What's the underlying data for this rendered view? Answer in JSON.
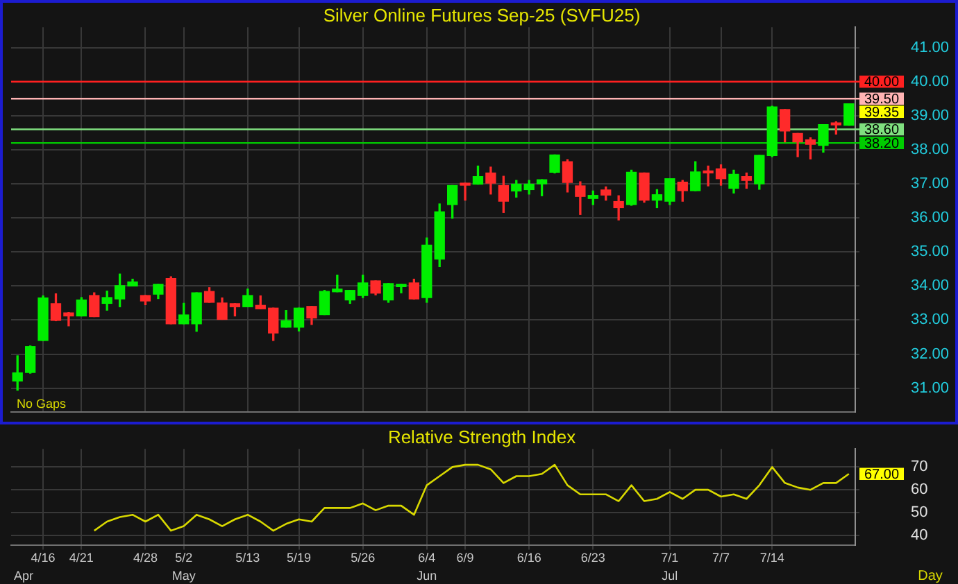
{
  "chart_data": [
    {
      "type": "candlestick",
      "title": "Silver Online Futures Sep-25 (SVFU25)",
      "categories": [
        null,
        null,
        null,
        null,
        null,
        null,
        null,
        null,
        null,
        null,
        null,
        null,
        null,
        null,
        null,
        null,
        null,
        null,
        null,
        null,
        null,
        null,
        null,
        null,
        null,
        null,
        null,
        null,
        null,
        null,
        null,
        null,
        null,
        null,
        null,
        null,
        null,
        null,
        null,
        null,
        null,
        null,
        null,
        null,
        null,
        null,
        null,
        null,
        null,
        null,
        null,
        null,
        null,
        null,
        null,
        null,
        null,
        null,
        null,
        null,
        null,
        null,
        null,
        null,
        null,
        null
      ],
      "ohlc": [
        [
          31.21,
          31.95,
          30.94,
          31.45
        ],
        [
          31.46,
          32.24,
          31.44,
          32.22
        ],
        [
          32.4,
          33.71,
          32.4,
          33.65
        ],
        [
          33.48,
          33.77,
          32.98,
          32.99
        ],
        [
          33.21,
          33.22,
          32.83,
          33.12
        ],
        [
          33.12,
          33.66,
          33.12,
          33.59
        ],
        [
          33.72,
          33.8,
          33.1,
          33.1
        ],
        [
          33.49,
          33.85,
          33.29,
          33.66
        ],
        [
          33.62,
          34.35,
          33.39,
          34.01
        ],
        [
          34.0,
          34.2,
          34.0,
          34.12
        ],
        [
          33.72,
          33.72,
          33.45,
          33.56
        ],
        [
          33.76,
          34.05,
          33.63,
          34.05
        ],
        [
          34.22,
          34.27,
          32.89,
          32.89
        ],
        [
          32.89,
          33.49,
          32.89,
          33.15
        ],
        [
          32.89,
          33.8,
          32.67,
          33.8
        ],
        [
          33.84,
          33.95,
          33.52,
          33.52
        ],
        [
          33.5,
          33.65,
          33.02,
          33.02
        ],
        [
          33.48,
          33.48,
          33.12,
          33.39
        ],
        [
          33.39,
          33.91,
          33.39,
          33.72
        ],
        [
          33.43,
          33.71,
          33.33,
          33.33
        ],
        [
          33.35,
          33.35,
          32.4,
          32.62
        ],
        [
          32.79,
          33.28,
          32.79,
          32.98
        ],
        [
          32.79,
          33.35,
          32.68,
          33.35
        ],
        [
          33.4,
          33.4,
          32.87,
          33.06
        ],
        [
          33.16,
          33.87,
          33.16,
          33.84
        ],
        [
          33.83,
          34.32,
          33.83,
          33.91
        ],
        [
          33.59,
          33.87,
          33.49,
          33.87
        ],
        [
          33.72,
          34.32,
          33.66,
          34.09
        ],
        [
          34.15,
          34.15,
          33.74,
          33.79
        ],
        [
          33.59,
          34.07,
          33.52,
          34.07
        ],
        [
          33.98,
          34.05,
          33.8,
          34.05
        ],
        [
          34.09,
          34.2,
          33.62,
          33.62
        ],
        [
          33.66,
          35.41,
          33.52,
          35.2
        ],
        [
          34.79,
          36.41,
          34.57,
          36.18
        ],
        [
          36.39,
          36.95,
          35.99,
          36.95
        ],
        [
          37.02,
          37.02,
          36.52,
          36.96
        ],
        [
          36.99,
          37.52,
          36.99,
          37.21
        ],
        [
          37.32,
          37.49,
          36.7,
          37.02
        ],
        [
          36.95,
          37.22,
          36.16,
          36.49
        ],
        [
          36.79,
          37.1,
          36.61,
          36.99
        ],
        [
          36.83,
          37.1,
          36.7,
          36.99
        ],
        [
          37.0,
          37.12,
          36.65,
          37.12
        ],
        [
          37.34,
          37.85,
          37.32,
          37.85
        ],
        [
          37.65,
          37.71,
          36.76,
          37.04
        ],
        [
          36.94,
          37.06,
          36.1,
          36.63
        ],
        [
          36.57,
          36.79,
          36.39,
          36.66
        ],
        [
          36.82,
          36.91,
          36.52,
          36.67
        ],
        [
          36.48,
          36.65,
          35.94,
          36.3
        ],
        [
          36.39,
          37.4,
          36.37,
          37.34
        ],
        [
          37.32,
          37.32,
          36.46,
          36.52
        ],
        [
          36.52,
          36.83,
          36.3,
          36.68
        ],
        [
          36.49,
          37.15,
          36.39,
          37.15
        ],
        [
          37.05,
          37.1,
          36.49,
          36.8
        ],
        [
          36.8,
          37.65,
          36.8,
          37.35
        ],
        [
          37.38,
          37.52,
          36.94,
          37.32
        ],
        [
          37.44,
          37.56,
          36.96,
          37.15
        ],
        [
          36.87,
          37.4,
          36.73,
          37.28
        ],
        [
          37.21,
          37.32,
          36.87,
          37.1
        ],
        [
          37.0,
          37.84,
          36.84,
          37.84
        ],
        [
          37.83,
          39.28,
          37.8,
          39.26
        ],
        [
          39.18,
          39.18,
          38.23,
          38.55
        ],
        [
          38.48,
          38.48,
          37.8,
          38.23
        ],
        [
          38.29,
          38.35,
          37.73,
          38.16
        ],
        [
          38.13,
          38.74,
          37.93,
          38.74
        ],
        [
          38.79,
          38.82,
          38.46,
          38.73
        ],
        [
          38.72,
          39.35,
          38.72,
          39.35
        ]
      ],
      "colors": [
        "#00ee00",
        "#00ee00",
        "#00ee00",
        "#ff2a2a",
        "#ff2a2a",
        "#00ee00",
        "#ff2a2a",
        "#00ee00",
        "#00ee00",
        "#00ee00",
        "#ff2a2a",
        "#00ee00",
        "#ff2a2a",
        "#00ee00",
        "#00ee00",
        "#ff2a2a",
        "#ff2a2a",
        "#ff2a2a",
        "#00ee00",
        "#ff2a2a",
        "#ff2a2a",
        "#00ee00",
        "#00ee00",
        "#ff2a2a",
        "#00ee00",
        "#00ee00",
        "#00ee00",
        "#00ee00",
        "#ff2a2a",
        "#00ee00",
        "#00ee00",
        "#ff2a2a",
        "#00ee00",
        "#00ee00",
        "#00ee00",
        "#ff2a2a",
        "#00ee00",
        "#ff2a2a",
        "#ff2a2a",
        "#00ee00",
        "#00ee00",
        "#00ee00",
        "#00ee00",
        "#ff2a2a",
        "#ff2a2a",
        "#00ee00",
        "#ff2a2a",
        "#ff2a2a",
        "#00ee00",
        "#ff2a2a",
        "#00ee00",
        "#00ee00",
        "#ff2a2a",
        "#00ee00",
        "#ff2a2a",
        "#ff2a2a",
        "#00ee00",
        "#ff2a2a",
        "#00ee00",
        "#00ee00",
        "#ff2a2a",
        "#ff2a2a",
        "#ff2a2a",
        "#00ee00",
        "#ff2a2a",
        "#00ee00"
      ],
      "ylim": [
        30.3,
        41.6
      ],
      "yticks": [
        {
          "value": 31,
          "label": "31.00"
        },
        {
          "value": 32,
          "label": "32.00"
        },
        {
          "value": 33,
          "label": "33.00"
        },
        {
          "value": 34,
          "label": "34.00"
        },
        {
          "value": 35,
          "label": "35.00"
        },
        {
          "value": 36,
          "label": "36.00"
        },
        {
          "value": 37,
          "label": "37.00"
        },
        {
          "value": 38,
          "label": "38.00"
        },
        {
          "value": 39,
          "label": "39.00"
        },
        {
          "value": 40,
          "label": "40.00"
        },
        {
          "value": 41,
          "label": "41.00"
        }
      ],
      "grid": true,
      "tick_labels": "y",
      "ref_lines": [
        {
          "axis": "y",
          "value": 40,
          "label": "40.00",
          "color": "#ff2020"
        },
        {
          "axis": "y",
          "value": 39.5,
          "label": "39.50",
          "color": "#ffb4b4"
        },
        {
          "axis": "y",
          "value": 38.6,
          "label": "38.60",
          "color": "#80e080"
        },
        {
          "axis": "y",
          "value": 38.2,
          "label": "38.20",
          "color": "#00cc00"
        }
      ],
      "annotations": [
        "No Gaps",
        "39.35"
      ]
    },
    {
      "type": "line",
      "title": "Relative Strength Index",
      "categories": [
        null,
        null,
        "4/16",
        null,
        null,
        "4/21",
        null,
        null,
        null,
        null,
        "4/28",
        null,
        null,
        "5/2",
        null,
        null,
        null,
        null,
        "5/13",
        null,
        null,
        null,
        "5/19",
        null,
        null,
        null,
        null,
        "5/26",
        null,
        null,
        null,
        null,
        "6/4",
        null,
        null,
        "6/9",
        null,
        null,
        null,
        null,
        "6/16",
        null,
        null,
        null,
        null,
        "6/23",
        null,
        null,
        null,
        null,
        null,
        "7/1",
        null,
        null,
        null,
        "7/7",
        null,
        null,
        null,
        "7/14",
        null,
        null,
        null,
        null,
        null,
        null
      ],
      "values": [
        null,
        null,
        null,
        null,
        null,
        null,
        42,
        46,
        48,
        49,
        46,
        49,
        42,
        44,
        49,
        47,
        44,
        47,
        49,
        46,
        42,
        45,
        47,
        46,
        52,
        52,
        52,
        54,
        51,
        53,
        53,
        49,
        62,
        66,
        70,
        71,
        71,
        69,
        63,
        66,
        66,
        67,
        71,
        62,
        58,
        58,
        58,
        55,
        62,
        55,
        56,
        59,
        56,
        60,
        60,
        57,
        58,
        56,
        62,
        70,
        63,
        61,
        60,
        63,
        63,
        67
      ],
      "color": "#d8d800",
      "ylim": [
        35.5,
        78
      ],
      "yticks": [
        40,
        50,
        60,
        70
      ],
      "grid": true,
      "annotations": [
        "Apr",
        "May",
        "Jun",
        "Jul",
        "Day",
        "67.00"
      ]
    }
  ]
}
